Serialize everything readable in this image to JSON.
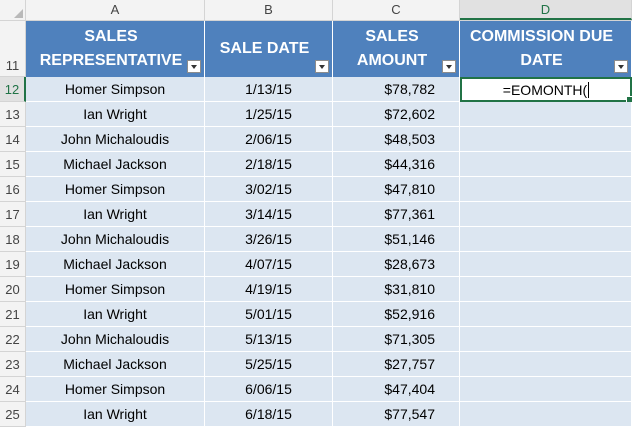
{
  "columns": [
    "A",
    "B",
    "C",
    "D"
  ],
  "header_row_number": "11",
  "headers": [
    {
      "line1": "SALES",
      "line2": "REPRESENTATIVE"
    },
    {
      "line1": "SALE DATE",
      "line2": ""
    },
    {
      "line1": "SALES",
      "line2": "AMOUNT"
    },
    {
      "line1": "COMMISSION DUE",
      "line2": "DATE"
    }
  ],
  "active_cell": {
    "column": "D",
    "row": "12",
    "formula": "=EOMONTH("
  },
  "rows": [
    {
      "num": "12",
      "rep": "Homer Simpson",
      "date": "1/13/15",
      "amount": "$78,782"
    },
    {
      "num": "13",
      "rep": "Ian Wright",
      "date": "1/25/15",
      "amount": "$72,602"
    },
    {
      "num": "14",
      "rep": "John Michaloudis",
      "date": "2/06/15",
      "amount": "$48,503"
    },
    {
      "num": "15",
      "rep": "Michael Jackson",
      "date": "2/18/15",
      "amount": "$44,316"
    },
    {
      "num": "16",
      "rep": "Homer Simpson",
      "date": "3/02/15",
      "amount": "$47,810"
    },
    {
      "num": "17",
      "rep": "Ian Wright",
      "date": "3/14/15",
      "amount": "$77,361"
    },
    {
      "num": "18",
      "rep": "John Michaloudis",
      "date": "3/26/15",
      "amount": "$51,146"
    },
    {
      "num": "19",
      "rep": "Michael Jackson",
      "date": "4/07/15",
      "amount": "$28,673"
    },
    {
      "num": "20",
      "rep": "Homer Simpson",
      "date": "4/19/15",
      "amount": "$31,810"
    },
    {
      "num": "21",
      "rep": "Ian Wright",
      "date": "5/01/15",
      "amount": "$52,916"
    },
    {
      "num": "22",
      "rep": "John Michaloudis",
      "date": "5/13/15",
      "amount": "$71,305"
    },
    {
      "num": "23",
      "rep": "Michael Jackson",
      "date": "5/25/15",
      "amount": "$27,757"
    },
    {
      "num": "24",
      "rep": "Homer Simpson",
      "date": "6/06/15",
      "amount": "$47,404"
    },
    {
      "num": "25",
      "rep": "Ian Wright",
      "date": "6/18/15",
      "amount": "$77,547"
    }
  ]
}
